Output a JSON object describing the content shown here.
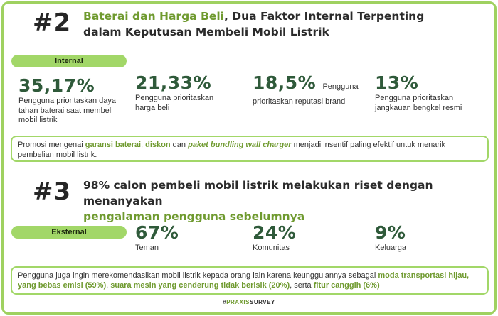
{
  "section2": {
    "number": "#2",
    "heading_green": "Baterai dan Harga Beli",
    "heading_rest_line1": ", Dua Faktor Internal Terpenting",
    "heading_line2": "dalam Keputusan Membeli Mobil Listrik",
    "tag": "Internal",
    "stats": [
      {
        "value": "35,17%",
        "label": "Pengguna prioritaskan daya tahan baterai saat membeli mobil listrik"
      },
      {
        "value": "21,33%",
        "label": "Pengguna prioritaskan harga beli"
      },
      {
        "value": "18,5%",
        "label_inline": "Pengguna",
        "label": "prioritaskan reputasi brand"
      },
      {
        "value": "13%",
        "label": "Pengguna prioritaskan jangkauan bengkel resmi"
      }
    ],
    "note": {
      "p1": "Promosi mengenai ",
      "h1": "garansi baterai",
      "p2": ", ",
      "h2": "diskon",
      "p3": " dan ",
      "h3": "paket bundling wall charger",
      "p4": " menjadi insentif paling efektif untuk menarik pembelian mobil listrik."
    }
  },
  "section3": {
    "number": "#3",
    "heading_line1": "98% calon pembeli mobil listrik melakukan riset dengan menanyakan",
    "heading_green": "pengalaman pengguna sebelumnya",
    "tag": "Eksternal",
    "stats": [
      {
        "value": "67%",
        "label": "Teman"
      },
      {
        "value": "24%",
        "label": "Komunitas"
      },
      {
        "value": "9%",
        "label": "Keluarga"
      }
    ],
    "note": {
      "p1": "Pengguna juga ingin merekomendasikan mobil listrik kepada orang lain karena keunggulannya sebagai ",
      "h1": "moda transportasi hijau, yang bebas emisi (59%)",
      "p2": ", ",
      "h2": "suara mesin yang cenderung tidak berisik (20%)",
      "p3": ", serta ",
      "h3": "fitur canggih (6%)"
    }
  },
  "footer": {
    "hash": "#",
    "brand_green": "PRAXIS",
    "brand_rest": "SURVEY"
  },
  "colors": {
    "accent": "#a2d768",
    "green_text": "#6f9a2f",
    "stat_text": "#2f5a3a"
  }
}
